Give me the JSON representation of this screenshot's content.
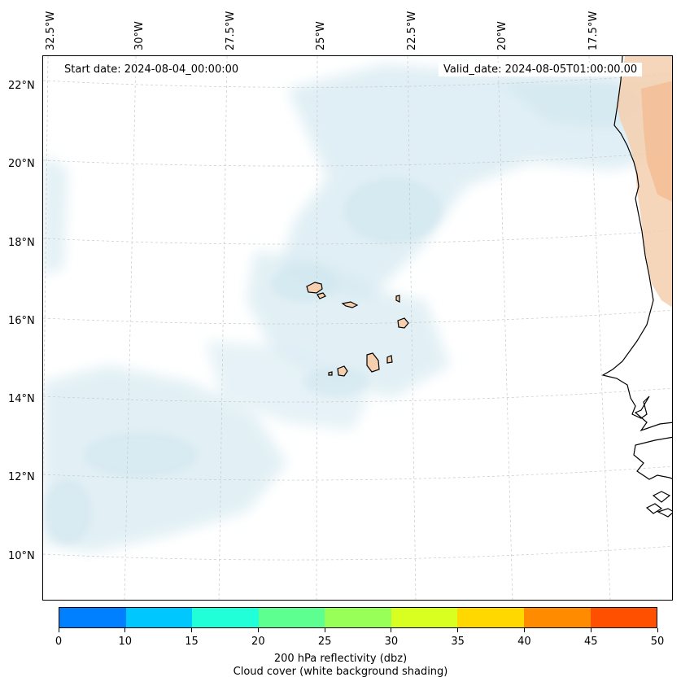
{
  "map": {
    "start_date": "Start date: 2024-08-04_00:00:00",
    "valid_date": "Valid_date: 2024-08-05T01:00:00.00",
    "longitude_labels": [
      "32.5°W",
      "30°W",
      "27.5°W",
      "25°W",
      "22.5°W",
      "20°W",
      "17.5°W"
    ],
    "latitude_labels": [
      "22°N",
      "20°N",
      "18°N",
      "16°N",
      "14°N",
      "12°N",
      "10°N"
    ],
    "islands": [
      "Santo Antão",
      "São Vicente",
      "São Nicolau",
      "Sal",
      "Boa Vista",
      "Maio",
      "Santiago",
      "Fogo",
      "Brava"
    ],
    "colors": {
      "land_africa": "#f5cfae",
      "cloud": "#d7ebf1",
      "coast": "#000000"
    }
  },
  "colorbar": {
    "ticks": [
      "0",
      "10",
      "15",
      "20",
      "25",
      "30",
      "35",
      "40",
      "45",
      "50"
    ],
    "colors": [
      "#0080ff",
      "#00c8ff",
      "#20ffd8",
      "#5cff90",
      "#98ff58",
      "#d8ff20",
      "#ffd800",
      "#ff8c00",
      "#ff5000"
    ],
    "label": "200 hPa reflectivity (dbz)",
    "sublabel": "Cloud cover (white background shading)"
  }
}
